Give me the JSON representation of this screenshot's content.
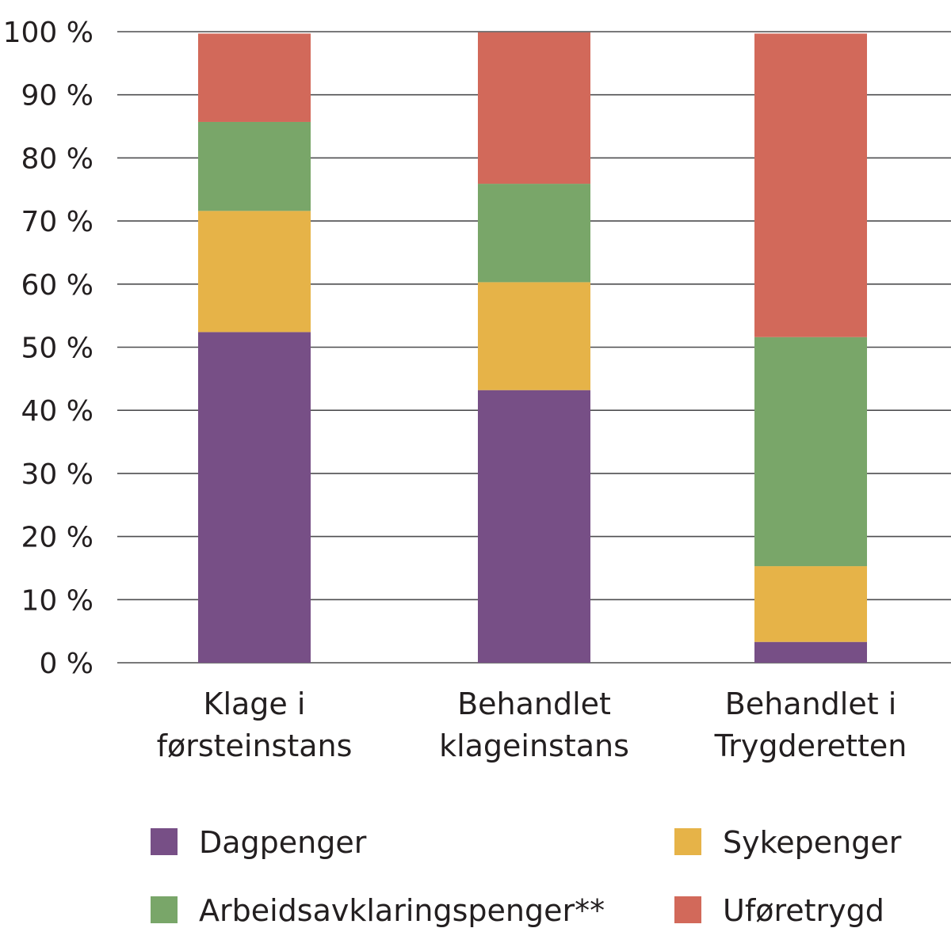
{
  "chart_data": {
    "type": "bar",
    "stacked": true,
    "categories": [
      [
        "Klage i",
        "førsteinstans"
      ],
      [
        "Behandlet",
        "klageinstans"
      ],
      [
        "Behandlet i",
        "Trygderetten"
      ]
    ],
    "series": [
      {
        "name": "Dagpenger",
        "color": "#774f86",
        "values": [
          52.4,
          43.2,
          3.3
        ]
      },
      {
        "name": "Sykepenger",
        "color": "#e6b348",
        "values": [
          19.2,
          17.1,
          12.0
        ]
      },
      {
        "name": "Arbeidsavklaringspenger**",
        "color": "#79a669",
        "values": [
          14.1,
          15.6,
          36.3
        ]
      },
      {
        "name": "Uføretrygd",
        "color": "#d2695a",
        "values": [
          14.0,
          24.0,
          48.1
        ]
      }
    ],
    "yticks": [
      "0 %",
      "10 %",
      "20 %",
      "30 %",
      "40 %",
      "50 %",
      "60 %",
      "70 %",
      "80 %",
      "90 %",
      "100 %"
    ],
    "ylim": [
      0,
      100
    ],
    "grid": true,
    "legend": {
      "placement": "bottom",
      "order": [
        "Dagpenger",
        "Sykepenger",
        "Arbeidsavklaringspenger**",
        "Uføretrygd"
      ]
    }
  }
}
